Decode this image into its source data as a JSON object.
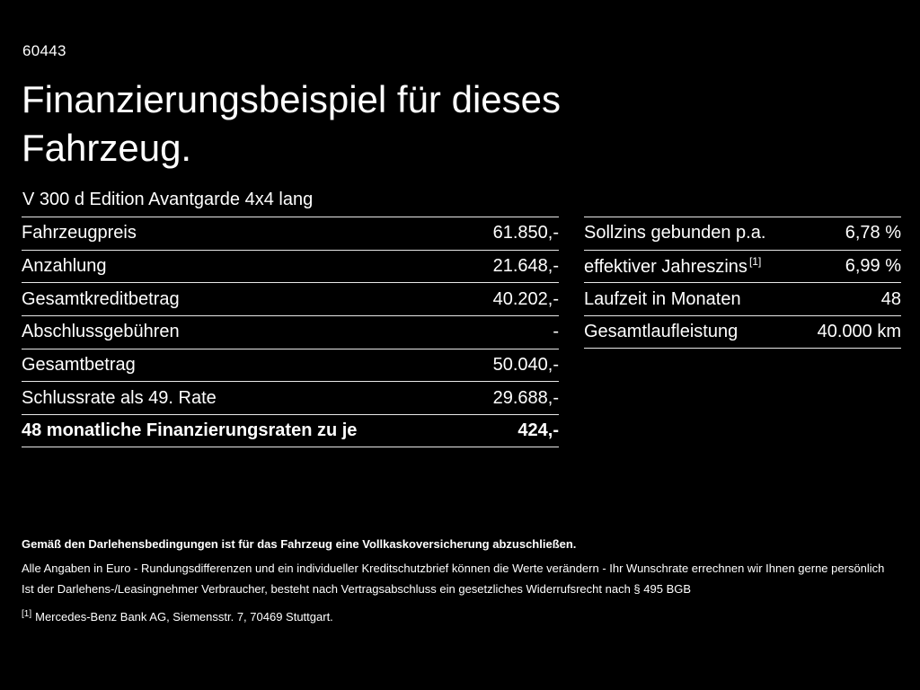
{
  "page": {
    "code": "60443",
    "title": "Finanzierungsbeispiel für dieses Fahrzeug.",
    "vehicle": "V 300 d Edition Avantgarde 4x4 lang"
  },
  "tables": {
    "left": {
      "rows": [
        {
          "label": "Fahrzeugpreis",
          "value": "61.850,-"
        },
        {
          "label": "Anzahlung",
          "value": "21.648,-"
        },
        {
          "label": "Gesamtkreditbetrag",
          "value": "40.202,-"
        },
        {
          "label": "Abschlussgebühren",
          "value": "-"
        },
        {
          "label": "Gesamtbetrag",
          "value": "50.040,-"
        },
        {
          "label": "Schlussrate als 49. Rate",
          "value": "29.688,-"
        },
        {
          "label": "48 monatliche Finanzierungsraten zu je",
          "value": "424,-"
        }
      ]
    },
    "right": {
      "rows": [
        {
          "label": "Sollzins gebunden p.a.",
          "value": "6,78 %"
        },
        {
          "label": "effektiver Jahreszins",
          "sup": "[1]",
          "value": "6,99 %"
        },
        {
          "label": "Laufzeit in Monaten",
          "value": "48"
        },
        {
          "label": "Gesamtlaufleistung",
          "value": "40.000 km"
        }
      ]
    }
  },
  "footer": {
    "bold_note": "Gemäß den Darlehensbedingungen ist für das Fahrzeug eine Vollkaskoversicherung abzuschließen.",
    "line1": "Alle Angaben in Euro - Rundungsdifferenzen und ein individueller Kreditschutzbrief können die Werte verändern - Ihr Wunschrate errechnen wir Ihnen gerne persönlich",
    "line2": "Ist der Darlehens-/Leasingnehmer Verbraucher, besteht nach Vertragsabschluss ein gesetzliches Widerrufsrecht nach § 495 BGB",
    "footnote_marker": "[1]",
    "footnote": "Mercedes-Benz Bank AG, Siemensstr. 7, 70469 Stuttgart."
  },
  "colors": {
    "background": "#000000",
    "text": "#ffffff",
    "divider": "#e8e8e8"
  }
}
